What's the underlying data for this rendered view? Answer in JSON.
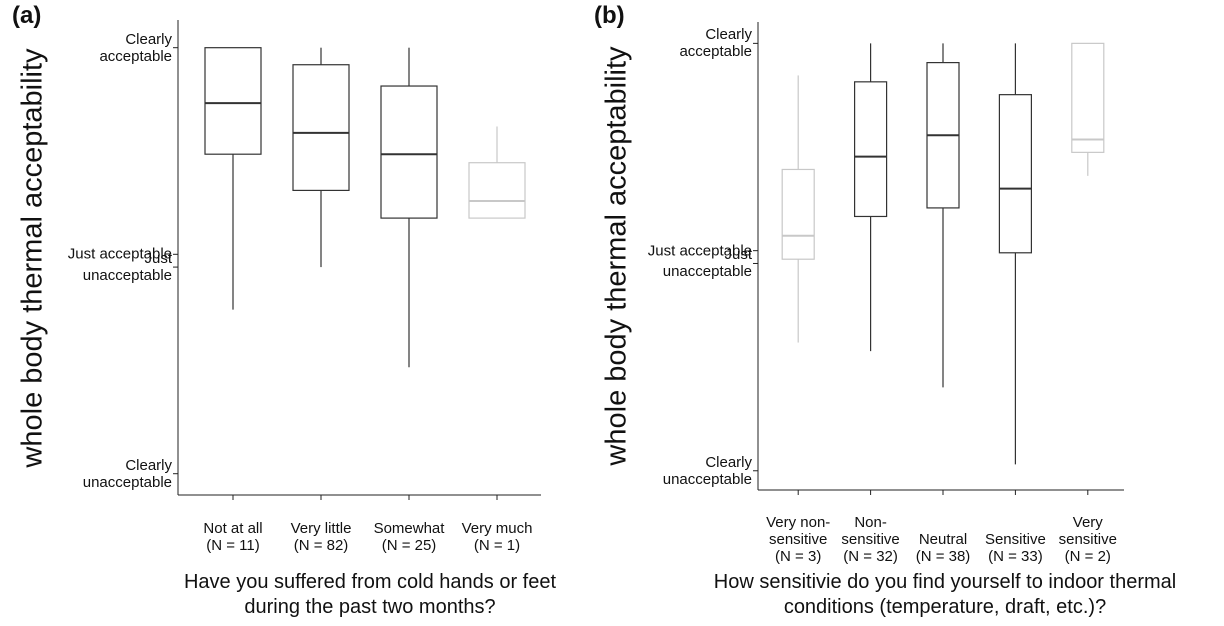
{
  "chart_data": [
    {
      "type": "box",
      "panel_label": "(a)",
      "ylabel": "whole body thermal acceptability",
      "xlabel": "Have you suffered from cold hands or feet during the past two months?",
      "categories": [
        "Not at all",
        "Very little",
        "Somewhat",
        "Very much"
      ],
      "n_labels": [
        "(N = 11)",
        "(N = 82)",
        "(N = 25)",
        "(N = 1)"
      ],
      "boxes": [
        {
          "low": -0.23,
          "q1": 0.5,
          "median": 0.74,
          "q3": 1.0,
          "high": 1.0,
          "color": "#333333"
        },
        {
          "low": -0.03,
          "q1": 0.33,
          "median": 0.6,
          "q3": 0.92,
          "high": 1.0,
          "color": "#333333"
        },
        {
          "low": -0.5,
          "q1": 0.2,
          "median": 0.5,
          "q3": 0.82,
          "high": 1.0,
          "color": "#333333"
        },
        {
          "low": 0.2,
          "q1": 0.2,
          "median": 0.28,
          "q3": 0.46,
          "high": 0.63,
          "color": "#c8c8c8"
        }
      ],
      "ylim": [
        -1.1,
        1.13
      ],
      "yticks": [
        {
          "value": 1,
          "label": "Clearly acceptable"
        },
        {
          "value": 0.03,
          "label": "Just acceptable"
        },
        {
          "value": -0.03,
          "label": "Just unacceptable"
        },
        {
          "value": -1,
          "label": "Clearly unacceptable"
        }
      ]
    },
    {
      "type": "box",
      "panel_label": "(b)",
      "ylabel": "whole body thermal acceptability",
      "xlabel": "How sensitivie do you find yourself to indoor thermal conditions (temperature, draft, etc.)?",
      "categories": [
        "Very non-sensitive",
        "Non-sensitive",
        "Neutral",
        "Sensitive",
        "Very sensitive"
      ],
      "n_labels": [
        "(N = 3)",
        "(N = 32)",
        "(N = 38)",
        "(N = 33)",
        "(N = 2)"
      ],
      "boxes": [
        {
          "low": -0.4,
          "q1": -0.01,
          "median": 0.1,
          "q3": 0.41,
          "high": 0.85,
          "color": "#c8c8c8"
        },
        {
          "low": -0.44,
          "q1": 0.19,
          "median": 0.47,
          "q3": 0.82,
          "high": 1.0,
          "color": "#333333"
        },
        {
          "low": -0.61,
          "q1": 0.23,
          "median": 0.57,
          "q3": 0.91,
          "high": 1.0,
          "color": "#333333"
        },
        {
          "low": -0.97,
          "q1": 0.02,
          "median": 0.32,
          "q3": 0.76,
          "high": 1.0,
          "color": "#333333"
        },
        {
          "low": 0.38,
          "q1": 0.49,
          "median": 0.55,
          "q3": 1.0,
          "high": 1.0,
          "color": "#c8c8c8"
        }
      ],
      "ylim": [
        -1.09,
        1.1
      ],
      "yticks": [
        {
          "value": 1,
          "label": "Clearly acceptable"
        },
        {
          "value": 0.03,
          "label": "Just acceptable"
        },
        {
          "value": -0.03,
          "label": "Just unacceptable"
        },
        {
          "value": -1,
          "label": "Clearly unacceptable"
        }
      ]
    }
  ]
}
